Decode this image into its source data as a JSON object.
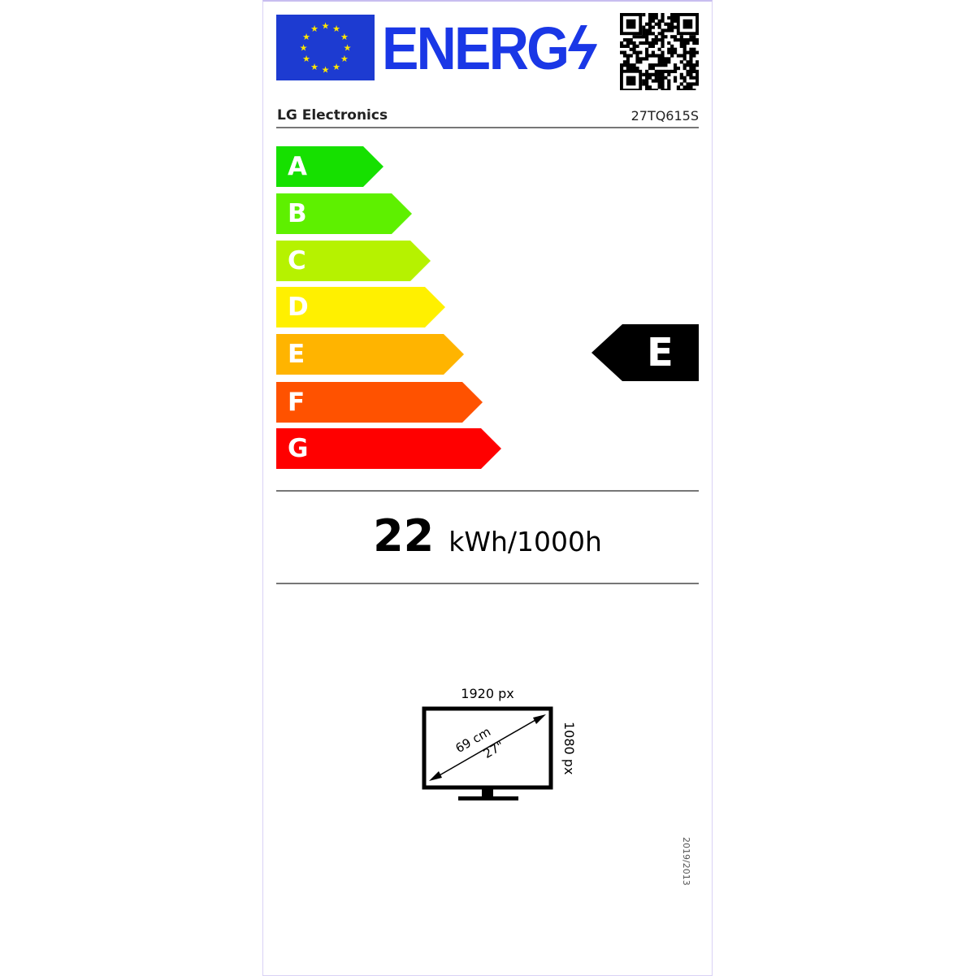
{
  "header": {
    "logo_text": "ENERG",
    "brand": "LG Electronics",
    "model": "27TQ615S"
  },
  "scale": {
    "classes": [
      {
        "letter": "A",
        "color": "#16e000"
      },
      {
        "letter": "B",
        "color": "#5ef000"
      },
      {
        "letter": "C",
        "color": "#b6f200"
      },
      {
        "letter": "D",
        "color": "#fff000"
      },
      {
        "letter": "E",
        "color": "#ffb400"
      },
      {
        "letter": "F",
        "color": "#ff5200"
      },
      {
        "letter": "G",
        "color": "#ff0000"
      }
    ],
    "rating": "E"
  },
  "consumption": {
    "value": "22",
    "unit": "kWh/1000h"
  },
  "screen": {
    "width_px": "1920 px",
    "height_px": "1080 px",
    "diagonal_cm": "69 cm",
    "diagonal_in": "27\""
  },
  "regulation": "2019/2013"
}
